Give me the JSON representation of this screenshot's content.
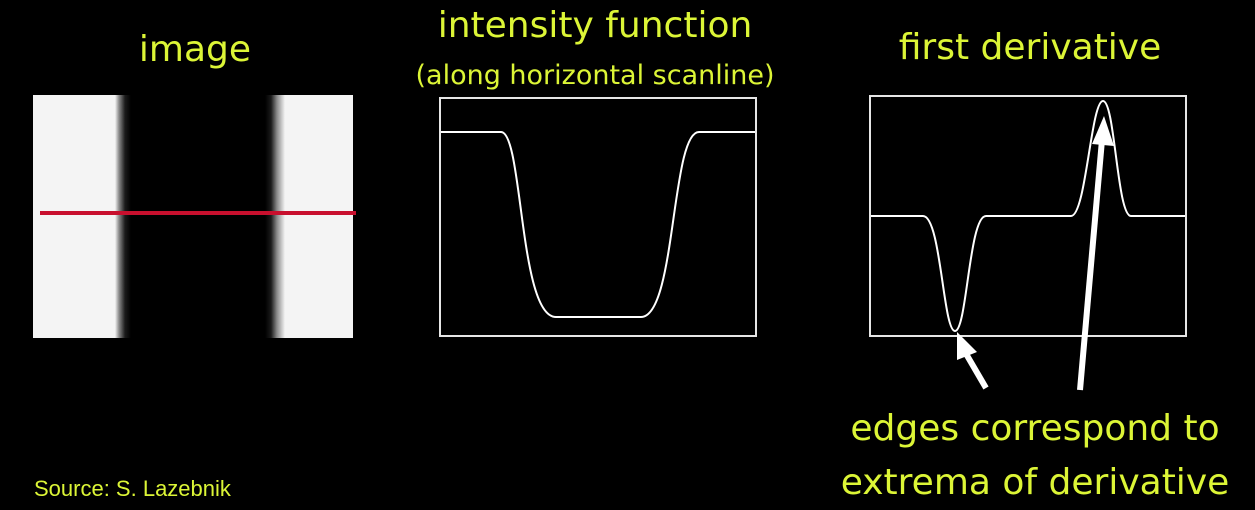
{
  "titles": {
    "image": "image",
    "intensity": "intensity function",
    "intensity_sub": "(along horizontal scanline)",
    "derivative": "first derivative"
  },
  "annotation": {
    "line1": "edges correspond to",
    "line2": "extrema of derivative"
  },
  "source": "Source: S. Lazebnik",
  "colors": {
    "title_text": "#dcf536",
    "background": "#000000",
    "scanline": "#c8102e",
    "curve": "#ffffff"
  },
  "icons": [
    "arrow-min-icon",
    "arrow-max-icon"
  ]
}
